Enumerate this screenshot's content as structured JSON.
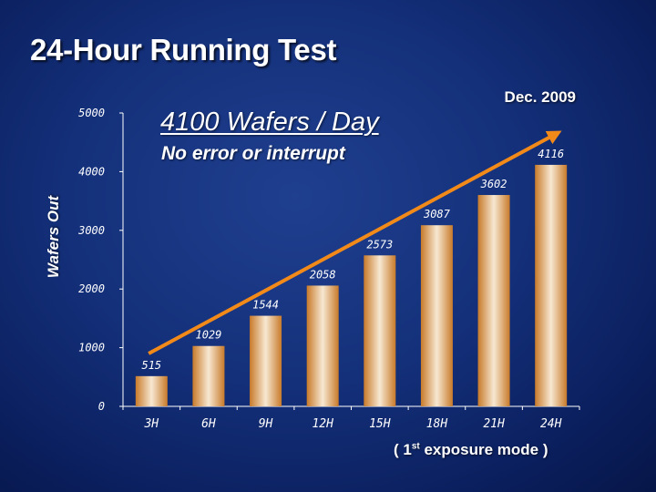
{
  "slide": {
    "title": "24-Hour Running Test",
    "date": "Dec. 2009",
    "headline": "4100 Wafers / Day",
    "subline": "No error or interrupt",
    "xnote_pre": "( 1",
    "xnote_sup": "st",
    "xnote_post": " exposure mode )"
  },
  "colors": {
    "background": "#14307a",
    "bar_edge": "#c87a2a",
    "bar_center": "#f7e8d2",
    "arrow": "#f28a1a",
    "axis": "#ffffff"
  },
  "chart_data": {
    "type": "bar",
    "title": "24-Hour Running Test",
    "ylabel": "Wafers Out",
    "xlabel": "",
    "categories": [
      "3H",
      "6H",
      "9H",
      "12H",
      "15H",
      "18H",
      "21H",
      "24H"
    ],
    "values": [
      515,
      1029,
      1544,
      2058,
      2573,
      3087,
      3602,
      4116
    ],
    "data_labels": [
      "515",
      "1029",
      "1544",
      "2058",
      "2573",
      "3087",
      "3602",
      "4116"
    ],
    "ylim": [
      0,
      5000
    ],
    "yticks": [
      0,
      1000,
      2000,
      3000,
      4000,
      5000
    ],
    "ytick_labels": [
      "0",
      "1000",
      "2000",
      "3000",
      "4000",
      "5000"
    ],
    "grid": false,
    "trend_arrow": {
      "from": [
        0.95,
        900
      ],
      "to": [
        7.6,
        4650
      ]
    }
  }
}
